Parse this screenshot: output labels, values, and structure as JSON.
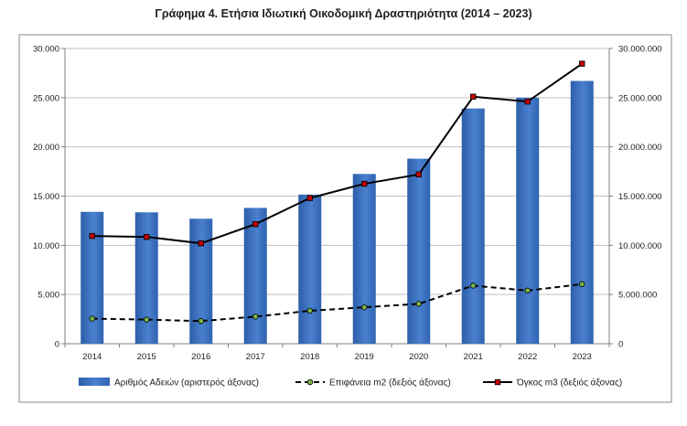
{
  "chart_data": {
    "type": "bar",
    "title": "Γράφημα 4. Ετήσια Ιδιωτική Οικοδομική Δραστηριότητα (2014 – 2023)",
    "categories": [
      "2014",
      "2015",
      "2016",
      "2017",
      "2018",
      "2019",
      "2020",
      "2021",
      "2022",
      "2023"
    ],
    "y_left": {
      "ylim": [
        0,
        30000
      ],
      "ticks": [
        "0",
        "5.000",
        "10.000",
        "15.000",
        "20.000",
        "25.000",
        "30.000"
      ]
    },
    "y_right": {
      "ylim": [
        0,
        30000000
      ],
      "ticks": [
        "0",
        "5.000.000",
        "10.000.000",
        "15.000.000",
        "20.000.000",
        "25.000.000",
        "30.000.000"
      ]
    },
    "series": [
      {
        "name": "Αριθμός Αδειών (αριστερός άξονας)",
        "type": "bar",
        "axis": "left",
        "color": "#3a6fbf",
        "values": [
          13400,
          13350,
          12700,
          13800,
          15150,
          17250,
          18800,
          23900,
          25000,
          26700
        ]
      },
      {
        "name": "Επιφάνεια m2 (δεξιός άξονας)",
        "type": "line",
        "axis": "right",
        "style": "dashed",
        "color": "#000000",
        "marker_color": "#7ab648",
        "values": [
          2550000,
          2450000,
          2300000,
          2750000,
          3350000,
          3700000,
          4050000,
          5900000,
          5400000,
          6050000
        ]
      },
      {
        "name": "Όγκος m3 (δεξιός άξονας)",
        "type": "line",
        "axis": "right",
        "style": "solid",
        "color": "#000000",
        "marker_color": "#c00000",
        "values": [
          10950000,
          10850000,
          10200000,
          12150000,
          14800000,
          16250000,
          17200000,
          25100000,
          24600000,
          28450000
        ]
      }
    ],
    "grid": true,
    "legend_position": "bottom"
  }
}
